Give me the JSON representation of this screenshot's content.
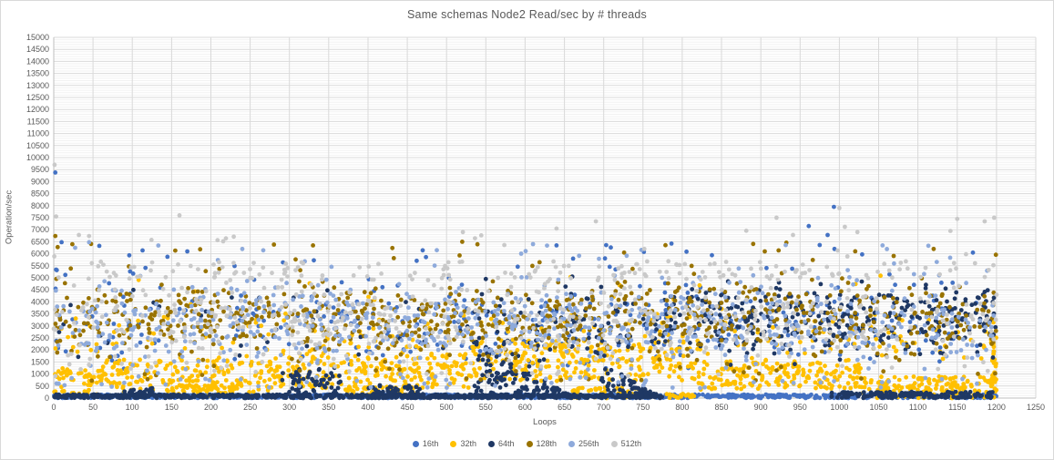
{
  "chart_data": {
    "type": "scatter",
    "title": "Same schemas Node2 Read/sec by # threads",
    "xlabel": "Loops",
    "ylabel": "Operation/sec",
    "xlim": [
      0,
      1250
    ],
    "ylim": [
      0,
      15000
    ],
    "x_ticks": [
      0,
      50,
      100,
      150,
      200,
      250,
      300,
      350,
      400,
      450,
      500,
      550,
      600,
      650,
      700,
      750,
      800,
      850,
      900,
      950,
      1000,
      1050,
      1100,
      1150,
      1200,
      1250
    ],
    "y_ticks": [
      0,
      500,
      1000,
      1500,
      2000,
      2500,
      3000,
      3500,
      4000,
      4500,
      5000,
      5500,
      6000,
      6500,
      7000,
      7500,
      8000,
      8500,
      9000,
      9500,
      10000,
      10500,
      11000,
      11500,
      12000,
      12500,
      13000,
      13500,
      14000,
      14500,
      15000
    ],
    "y_minor_step": 100,
    "grid": true,
    "legend_position": "bottom",
    "marker_radius": 2.4,
    "seed": 7,
    "series": [
      {
        "name": "16th",
        "color": "#4472C4",
        "bands": [
          {
            "x0": 0,
            "x1": 1200,
            "n": 950,
            "y": [
              "u",
              0,
              150
            ]
          },
          {
            "x0": 0,
            "x1": 1200,
            "n": 320,
            "y": [
              "n",
              3100,
              950,
              900,
              5300
            ]
          },
          {
            "x0": 0,
            "x1": 1200,
            "n": 26,
            "y": [
              "u",
              5300,
              6500
            ]
          }
        ],
        "outliers": [
          [
            2,
            9380
          ],
          [
            10,
            6480
          ],
          [
            58,
            6330
          ],
          [
            113,
            6140
          ],
          [
            170,
            6100
          ],
          [
            640,
            6350
          ],
          [
            961,
            7150
          ],
          [
            975,
            6365
          ],
          [
            985,
            6780
          ],
          [
            993,
            7950
          ],
          [
            1170,
            6050
          ]
        ]
      },
      {
        "name": "32th",
        "color": "#FFC000",
        "bands": [
          {
            "x0": 0,
            "x1": 60,
            "n": 55,
            "y": [
              "u",
              150,
              1250
            ]
          },
          {
            "x0": 60,
            "x1": 280,
            "n": 200,
            "y": [
              "u",
              250,
              1600
            ]
          },
          {
            "x0": 150,
            "x1": 230,
            "n": 40,
            "y": [
              "u",
              80,
              600
            ]
          },
          {
            "x0": 280,
            "x1": 530,
            "n": 220,
            "y": [
              "u",
              400,
              1900
            ]
          },
          {
            "x0": 370,
            "x1": 460,
            "n": 55,
            "y": [
              "u",
              50,
              500
            ]
          },
          {
            "x0": 530,
            "x1": 820,
            "n": 240,
            "y": [
              "u",
              700,
              2400
            ]
          },
          {
            "x0": 660,
            "x1": 745,
            "n": 40,
            "y": [
              "u",
              0,
              450
            ]
          },
          {
            "x0": 780,
            "x1": 815,
            "n": 18,
            "y": [
              "u",
              0,
              250
            ]
          },
          {
            "x0": 820,
            "x1": 1030,
            "n": 190,
            "y": [
              "u",
              350,
              1600
            ]
          },
          {
            "x0": 1030,
            "x1": 1200,
            "n": 160,
            "y": [
              "u",
              0,
              900
            ]
          },
          {
            "x0": 1193,
            "x1": 1200,
            "n": 22,
            "y": [
              "u",
              0,
              2600
            ]
          },
          {
            "x0": 0,
            "x1": 1200,
            "n": 190,
            "y": [
              "n",
              2500,
              600,
              1500,
              4200
            ]
          },
          {
            "x0": 0,
            "x1": 1200,
            "n": 10,
            "y": [
              "u",
              4200,
              5100
            ]
          }
        ],
        "outliers": []
      },
      {
        "name": "64th",
        "color": "#1F3864",
        "bands": [
          {
            "x0": 0,
            "x1": 560,
            "n": 520,
            "y": [
              "u",
              0,
              150
            ]
          },
          {
            "x0": 90,
            "x1": 130,
            "n": 25,
            "y": [
              "u",
              80,
              420
            ]
          },
          {
            "x0": 290,
            "x1": 365,
            "n": 60,
            "y": [
              "u",
              100,
              1300
            ]
          },
          {
            "x0": 400,
            "x1": 470,
            "n": 55,
            "y": [
              "u",
              50,
              550
            ]
          },
          {
            "x0": 535,
            "x1": 660,
            "n": 120,
            "y": [
              "w",
              80,
              2400
            ]
          },
          {
            "x0": 560,
            "x1": 775,
            "n": 200,
            "y": [
              "u",
              0,
              150
            ]
          },
          {
            "x0": 695,
            "x1": 775,
            "n": 70,
            "y": [
              "w",
              30,
              1500
            ]
          },
          {
            "x0": 990,
            "x1": 1200,
            "n": 160,
            "y": [
              "u",
              0,
              260
            ]
          },
          {
            "x0": 560,
            "x1": 820,
            "n": 110,
            "y": [
              "n",
              3100,
              800,
              1200,
              4700
            ]
          },
          {
            "x0": 820,
            "x1": 1200,
            "n": 310,
            "y": [
              "n",
              3300,
              800,
              1300,
              4900
            ]
          },
          {
            "x0": 0,
            "x1": 560,
            "n": 38,
            "y": [
              "u",
              1500,
              4500
            ]
          }
        ],
        "outliers": [
          [
            550,
            4950
          ],
          [
            660,
            5050
          ]
        ]
      },
      {
        "name": "128th",
        "color": "#997300",
        "bands": [
          {
            "x0": 0,
            "x1": 1200,
            "n": 800,
            "y": [
              "n",
              3300,
              750,
              1300,
              5400
            ]
          },
          {
            "x0": 0,
            "x1": 1200,
            "n": 24,
            "y": [
              "u",
              5400,
              6500
            ]
          },
          {
            "x0": 0,
            "x1": 1200,
            "n": 28,
            "y": [
              "u",
              700,
              1300
            ]
          }
        ],
        "outliers": [
          [
            2,
            6740
          ],
          [
            330,
            6350
          ],
          [
            520,
            6500
          ],
          [
            905,
            6100
          ],
          [
            1120,
            6200
          ]
        ]
      },
      {
        "name": "256th",
        "color": "#8EAADB",
        "bands": [
          {
            "x0": 0,
            "x1": 1200,
            "n": 660,
            "y": [
              "n",
              3100,
              900,
              900,
              5500
            ]
          },
          {
            "x0": 0,
            "x1": 1200,
            "n": 20,
            "y": [
              "u",
              5500,
              6400
            ]
          },
          {
            "x0": 0,
            "x1": 1200,
            "n": 55,
            "y": [
              "u",
              400,
              900
            ]
          }
        ],
        "outliers": [
          [
            45,
            6480
          ],
          [
            240,
            6200
          ],
          [
            610,
            6400
          ],
          [
            1055,
            6350
          ]
        ]
      },
      {
        "name": "512th",
        "color": "#C9C9C9",
        "bands": [
          {
            "x0": 0,
            "x1": 1200,
            "n": 470,
            "y": [
              "n",
              3300,
              900,
              1600,
              5300
            ]
          },
          {
            "x0": 0,
            "x1": 1200,
            "n": 160,
            "y": [
              "u",
              4900,
              5700
            ]
          },
          {
            "x0": 0,
            "x1": 1200,
            "n": 16,
            "y": [
              "u",
              5800,
              7000
            ]
          },
          {
            "x0": 0,
            "x1": 1200,
            "n": 35,
            "y": [
              "u",
              900,
              1600
            ]
          }
        ],
        "outliers": [
          [
            1,
            9700
          ],
          [
            3,
            7550
          ],
          [
            32,
            6780
          ],
          [
            45,
            6740
          ],
          [
            160,
            7600
          ],
          [
            640,
            7050
          ],
          [
            690,
            7350
          ],
          [
            920,
            7500
          ],
          [
            941,
            6780
          ],
          [
            1000,
            7900
          ],
          [
            1007,
            7120
          ],
          [
            1023,
            6900
          ],
          [
            1150,
            7450
          ],
          [
            1185,
            7350
          ],
          [
            1197,
            7500
          ]
        ]
      }
    ]
  },
  "colors": {
    "grid_major": "#D9D9D9",
    "grid_minor": "#F2F2F2",
    "axis_line": "#BFBFBF",
    "text": "#595959",
    "background": "#FFFFFF",
    "border": "#D9D9D9"
  }
}
